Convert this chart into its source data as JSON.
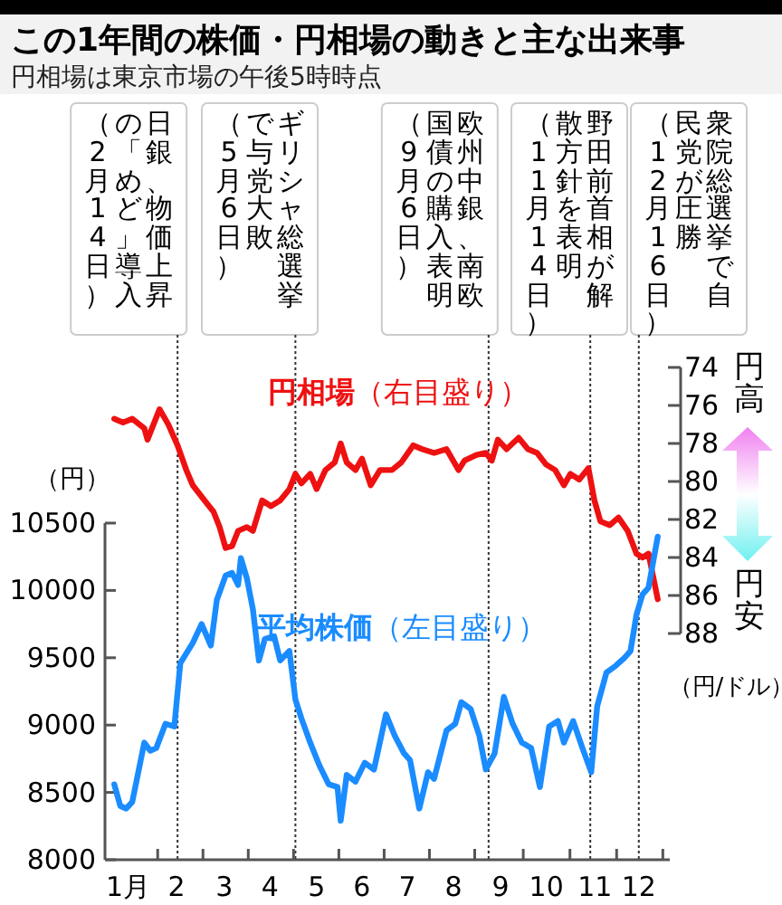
{
  "chart_data": {
    "type": "line",
    "title": "この1年間の株価・円相場の動きと主な出来事",
    "subtitle": "円相場は東京市場の午後5時時点",
    "ylabel": "（円）",
    "y2label": "（円/ドル）",
    "xlim": [
      0,
      12.22
    ],
    "xticks": [
      {
        "value": 0.5,
        "label": "1月"
      },
      {
        "value": 1.55,
        "label": "2"
      },
      {
        "value": 2.58,
        "label": "3"
      },
      {
        "value": 3.57,
        "label": "4"
      },
      {
        "value": 4.58,
        "label": "5"
      },
      {
        "value": 5.56,
        "label": "6"
      },
      {
        "value": 6.54,
        "label": "7"
      },
      {
        "value": 7.54,
        "label": "8"
      },
      {
        "value": 8.56,
        "label": "9"
      },
      {
        "value": 9.55,
        "label": "10"
      },
      {
        "value": 10.6,
        "label": "11"
      },
      {
        "value": 11.55,
        "label": "12"
      },
      {
        "value": 1.14,
        "label": null
      },
      {
        "value": 2.12,
        "label": null
      },
      {
        "value": 3.1,
        "label": null
      },
      {
        "value": 4.08,
        "label": null
      },
      {
        "value": 5.06,
        "label": null
      },
      {
        "value": 6.04,
        "label": null
      },
      {
        "value": 7.02,
        "label": null
      },
      {
        "value": 8.0,
        "label": null
      },
      {
        "value": 9.05,
        "label": null
      },
      {
        "value": 10.06,
        "label": null
      },
      {
        "value": 11.07,
        "label": null
      },
      {
        "value": 12.07,
        "label": null
      }
    ],
    "ylim": [
      8000,
      10500
    ],
    "yticks": [
      8000,
      8500,
      9000,
      9500,
      10000,
      10500
    ],
    "y2lim": [
      88,
      74
    ],
    "y2ticks": [
      74,
      76,
      78,
      80,
      82,
      84,
      86,
      88
    ],
    "series": [
      {
        "name": "円相場（右目盛り）",
        "color": "#ee1111",
        "axis": "y2",
        "x": [
          0.2,
          0.39,
          0.59,
          0.85,
          0.92,
          1.18,
          1.37,
          1.57,
          1.76,
          1.9,
          2.09,
          2.22,
          2.35,
          2.48,
          2.61,
          2.75,
          2.88,
          3.07,
          3.2,
          3.4,
          3.59,
          3.79,
          3.99,
          4.12,
          4.25,
          4.44,
          4.58,
          4.77,
          4.97,
          5.1,
          5.23,
          5.42,
          5.56,
          5.75,
          5.95,
          6.21,
          6.41,
          6.67,
          6.86,
          7.12,
          7.39,
          7.65,
          7.78,
          8.04,
          8.24,
          8.37,
          8.5,
          8.69,
          8.95,
          9.15,
          9.35,
          9.54,
          9.74,
          9.93,
          10.07,
          10.26,
          10.46,
          10.59,
          10.72,
          10.92,
          11.11,
          11.31,
          11.5,
          11.63,
          11.76,
          11.96
        ],
        "values": [
          76.7,
          76.9,
          76.7,
          77.2,
          77.8,
          76.2,
          77.0,
          78.1,
          79.4,
          80.2,
          80.8,
          81.2,
          81.6,
          82.4,
          83.5,
          83.4,
          82.6,
          82.4,
          82.6,
          81.0,
          81.3,
          81.0,
          80.4,
          79.6,
          80.1,
          79.6,
          80.4,
          79.4,
          79.0,
          78.0,
          79.0,
          79.4,
          78.8,
          80.2,
          79.4,
          79.4,
          79.0,
          78.1,
          78.3,
          78.5,
          78.3,
          79.4,
          78.9,
          78.6,
          78.5,
          78.9,
          77.8,
          78.3,
          77.7,
          78.3,
          78.5,
          79.1,
          79.4,
          80.2,
          79.6,
          79.9,
          79.3,
          81.0,
          82.1,
          82.3,
          81.9,
          82.6,
          83.8,
          84.0,
          83.8,
          86.2
        ]
      },
      {
        "name": "平均株価（左目盛り）",
        "color": "#1a8cff",
        "x": [
          0.2,
          0.33,
          0.46,
          0.59,
          0.72,
          0.85,
          0.98,
          1.11,
          1.31,
          1.5,
          1.63,
          1.9,
          2.09,
          2.29,
          2.42,
          2.61,
          2.75,
          2.88,
          2.94,
          3.07,
          3.2,
          3.33,
          3.46,
          3.66,
          3.79,
          3.99,
          4.12,
          4.25,
          4.44,
          4.64,
          4.84,
          5.03,
          5.1,
          5.23,
          5.42,
          5.62,
          5.82,
          6.08,
          6.27,
          6.47,
          6.6,
          6.8,
          6.99,
          7.12,
          7.39,
          7.58,
          7.71,
          7.91,
          8.1,
          8.24,
          8.43,
          8.63,
          8.82,
          9.02,
          9.22,
          9.41,
          9.61,
          9.8,
          9.93,
          10.13,
          10.33,
          10.52,
          10.65,
          10.85,
          11.05,
          11.24,
          11.37,
          11.5,
          11.63,
          11.76,
          11.96
        ],
        "values": [
          8560,
          8400,
          8380,
          8430,
          8650,
          8870,
          8810,
          8830,
          9010,
          8990,
          9460,
          9610,
          9750,
          9590,
          9930,
          10110,
          10130,
          10040,
          10240,
          10090,
          9860,
          9480,
          9640,
          9660,
          9480,
          9550,
          9190,
          9050,
          8870,
          8700,
          8560,
          8540,
          8290,
          8630,
          8580,
          8720,
          8670,
          9080,
          8920,
          8790,
          8740,
          8380,
          8650,
          8600,
          8960,
          9010,
          9170,
          9120,
          8920,
          8670,
          8790,
          9210,
          9010,
          8870,
          8830,
          8540,
          8990,
          9030,
          8870,
          9030,
          8830,
          8650,
          9140,
          9390,
          9440,
          9500,
          9550,
          9820,
          9970,
          10020,
          10400
        ]
      }
    ],
    "ref_lines": [
      {
        "axis": "x",
        "value": 1.57,
        "label": "日銀、物価上昇の「めど」導入（2月14日）"
      },
      {
        "axis": "x",
        "value": 4.12,
        "label": "ギリシャ総選挙で与党大敗（5月6日）"
      },
      {
        "axis": "x",
        "value": 8.3,
        "label": "欧州中銀、南欧国債の購入表明（9月6日）"
      },
      {
        "axis": "x",
        "value": 10.5,
        "label": "野田前首相が解散方針を表明（11月14日）"
      },
      {
        "axis": "x",
        "value": 11.55,
        "label": "衆院総選挙で自民党が圧勝（12月16日）"
      }
    ],
    "annotations": [
      "円高",
      "円安"
    ]
  }
}
